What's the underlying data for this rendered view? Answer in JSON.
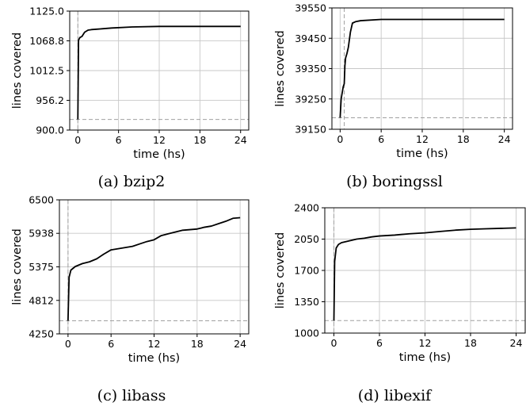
{
  "chart_data": [
    {
      "type": "line",
      "caption": "(a) bzip2",
      "xlabel": "time (hs)",
      "ylabel": "lines covered",
      "xlim": [
        -1.2,
        25.2
      ],
      "ylim": [
        900.0,
        1125.0
      ],
      "xticks": [
        0,
        6,
        12,
        18,
        24
      ],
      "yticks": [
        "900.0",
        "956.2",
        "1012.5",
        "1068.8",
        "1125.0"
      ],
      "ytick_values": [
        900.0,
        956.2,
        1012.5,
        1068.8,
        1125.0
      ],
      "grid": true,
      "reference_lines": {
        "baseline_y": 920,
        "start_x": 0
      },
      "series": [
        {
          "values": {
            "x": [
              0,
              0.1,
              0.3,
              0.6,
              1.0,
              1.5,
              2,
              3,
              5,
              8,
              12,
              18,
              24
            ],
            "y": [
              920,
              1070,
              1075,
              1077,
              1085,
              1089,
              1090,
              1091,
              1093,
              1095,
              1096,
              1096,
              1096
            ]
          }
        }
      ]
    },
    {
      "type": "line",
      "caption": "(b) boringssl",
      "xlabel": "time (hs)",
      "ylabel": "lines covered",
      "xlim": [
        -1.2,
        25.2
      ],
      "ylim": [
        39150,
        39550
      ],
      "xticks": [
        0,
        6,
        12,
        18,
        24
      ],
      "yticks": [
        "39150",
        "39250",
        "39350",
        "39450",
        "39550"
      ],
      "ytick_values": [
        39150,
        39250,
        39350,
        39450,
        39550
      ],
      "grid": true,
      "reference_lines": {
        "baseline_y": 39188,
        "start_x": 0.6
      },
      "series": [
        {
          "values": {
            "x": [
              0,
              0.15,
              0.3,
              0.45,
              0.6,
              0.7,
              0.8,
              1.0,
              1.2,
              1.5,
              1.8,
              2.3,
              3,
              6,
              12,
              18,
              24
            ],
            "y": [
              39188,
              39250,
              39270,
              39290,
              39300,
              39360,
              39385,
              39400,
              39420,
              39470,
              39500,
              39505,
              39508,
              39512,
              39512,
              39512,
              39512
            ]
          }
        }
      ]
    },
    {
      "type": "line",
      "caption": "(c) libass",
      "xlabel": "time (hs)",
      "ylabel": "lines covered",
      "xlim": [
        -1.2,
        25.2
      ],
      "ylim": [
        4250,
        6500
      ],
      "xticks": [
        0,
        6,
        12,
        18,
        24
      ],
      "yticks": [
        "4250",
        "4812",
        "5375",
        "5938",
        "6500"
      ],
      "ytick_values": [
        4250,
        4812,
        5375,
        5938,
        6500
      ],
      "grid": true,
      "reference_lines": {
        "baseline_y": 4470,
        "start_x": 0
      },
      "series": [
        {
          "values": {
            "x": [
              0,
              0.15,
              0.4,
              1,
              2,
              3,
              4,
              5,
              6,
              7,
              8,
              9,
              10,
              11,
              12,
              13,
              14,
              15,
              16,
              17,
              18,
              19,
              20,
              21,
              22,
              23,
              24
            ],
            "y": [
              4470,
              5200,
              5320,
              5380,
              5430,
              5460,
              5510,
              5590,
              5660,
              5680,
              5700,
              5720,
              5760,
              5800,
              5830,
              5900,
              5930,
              5960,
              5990,
              6000,
              6010,
              6040,
              6060,
              6100,
              6140,
              6190,
              6200
            ]
          }
        }
      ]
    },
    {
      "type": "line",
      "caption": "(d) libexif",
      "xlabel": "time (hs)",
      "ylabel": "lines covered",
      "xlim": [
        -1.2,
        25.2
      ],
      "ylim": [
        1000,
        2400
      ],
      "xticks": [
        0,
        6,
        12,
        18,
        24
      ],
      "yticks": [
        "1000",
        "1350",
        "1700",
        "2050",
        "2400"
      ],
      "ytick_values": [
        1000,
        1350,
        1700,
        2050,
        2400
      ],
      "grid": true,
      "reference_lines": {
        "baseline_y": 1140,
        "start_x": 0
      },
      "series": [
        {
          "values": {
            "x": [
              0,
              0.1,
              0.3,
              0.6,
              1.0,
              2,
              3,
              4,
              5,
              6,
              8,
              10,
              12,
              14,
              16,
              18,
              20,
              22,
              24
            ],
            "y": [
              1140,
              1800,
              1950,
              1990,
              2010,
              2030,
              2050,
              2060,
              2075,
              2085,
              2095,
              2110,
              2120,
              2135,
              2150,
              2160,
              2165,
              2170,
              2175
            ]
          }
        }
      ]
    }
  ]
}
